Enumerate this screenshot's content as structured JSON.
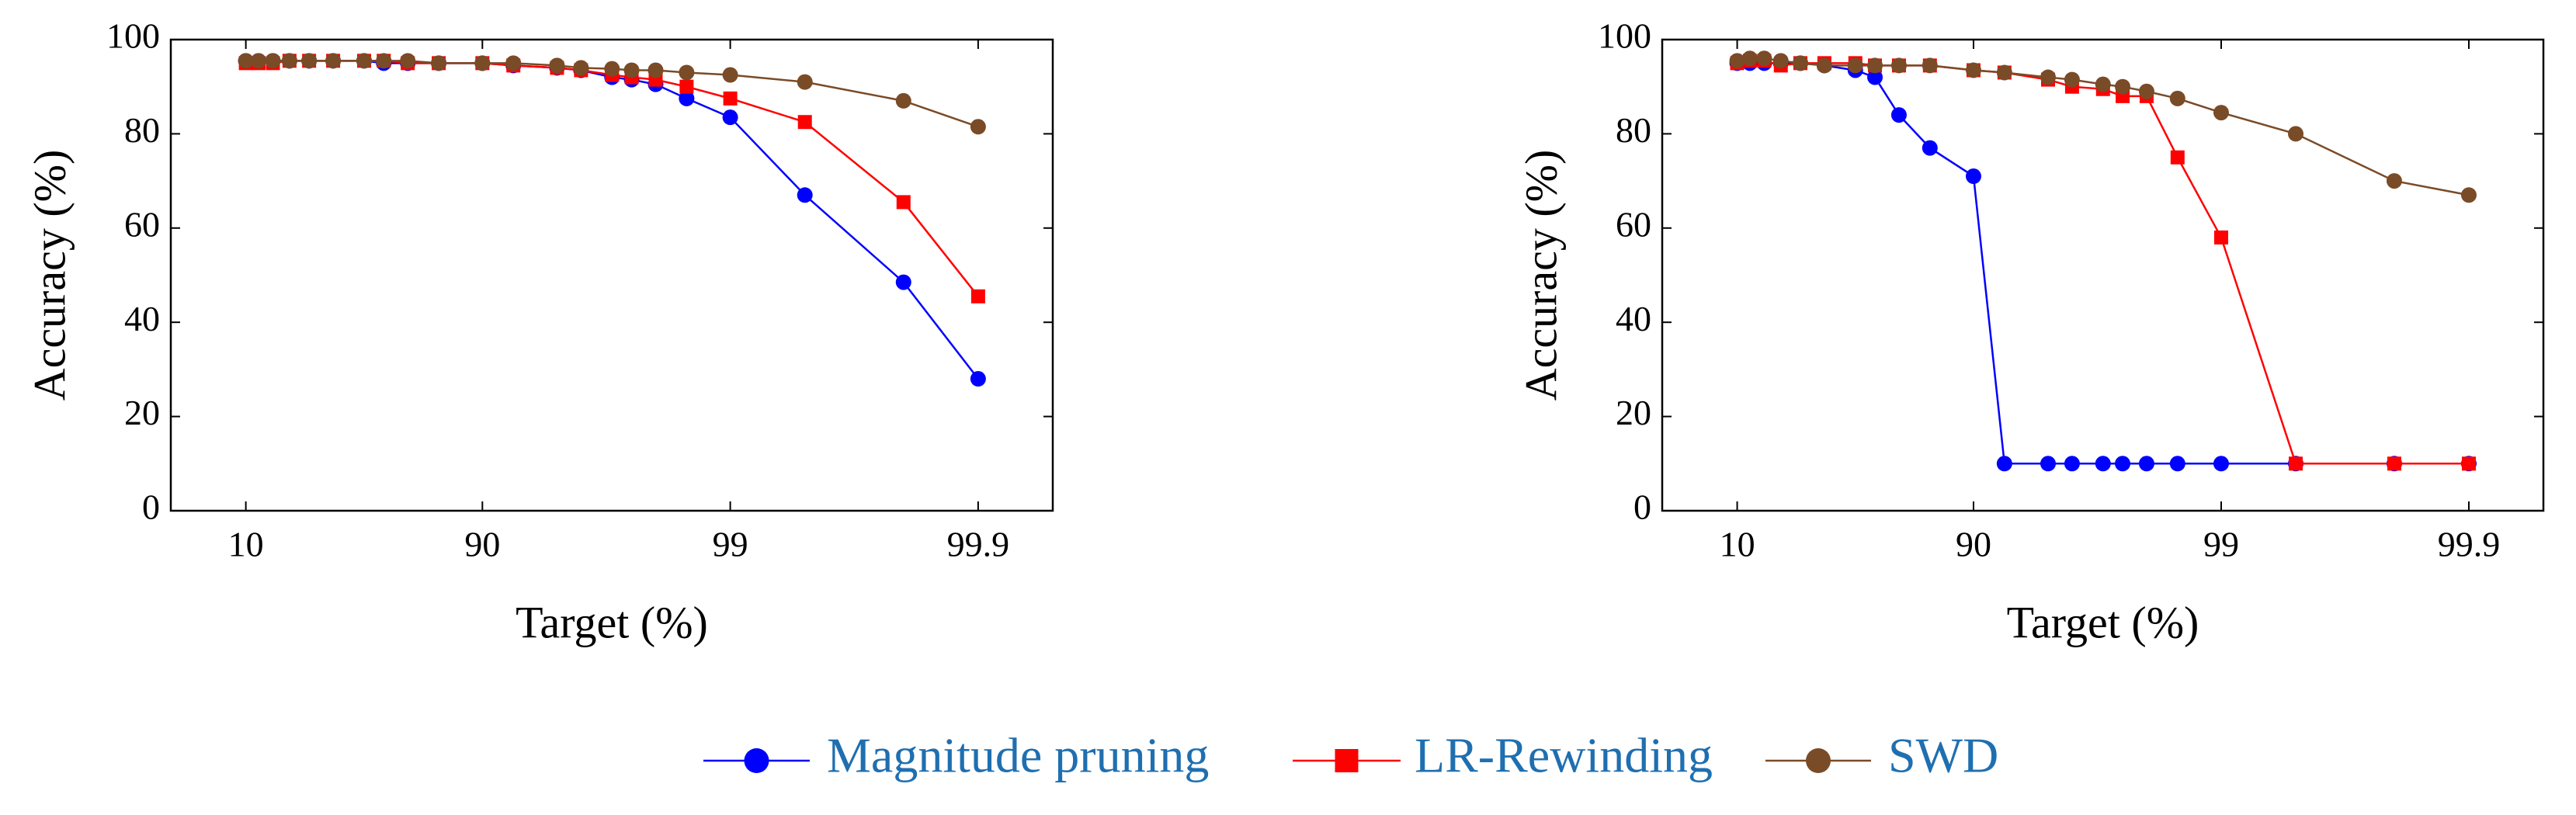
{
  "chart_data": [
    {
      "type": "line",
      "xlabel": "Target (%)",
      "ylabel": "Accuracy (%)",
      "xscale": "log_complement",
      "x": [
        10,
        20,
        30,
        40,
        50,
        60,
        70,
        75,
        80,
        85,
        90,
        92.5,
        95,
        96,
        97,
        97.5,
        98,
        98.5,
        99,
        99.5,
        99.8,
        99.9
      ],
      "xlim": [
        -80.7,
        99.95
      ],
      "xticks": [
        10,
        90,
        99,
        99.9
      ],
      "ylim": [
        0,
        100
      ],
      "yticks": [
        0,
        20,
        40,
        60,
        80,
        100
      ],
      "series": [
        {
          "name": "Magnitude pruning",
          "color": "#0000ff",
          "marker": "circle",
          "values": [
            95.5,
            95.5,
            95.5,
            95.5,
            95.5,
            95.5,
            95.5,
            95,
            95,
            95,
            95,
            94.5,
            94,
            93.5,
            92,
            91.5,
            90.5,
            87.5,
            83.5,
            67,
            48.5,
            28
          ]
        },
        {
          "name": "LR-Rewinding",
          "color": "#ff0000",
          "marker": "square",
          "values": [
            95,
            95,
            95,
            95.5,
            95.5,
            95.5,
            95.5,
            95.5,
            95,
            95,
            95,
            94.5,
            94,
            93.5,
            92.5,
            92,
            91.5,
            90,
            87.5,
            82.5,
            65.5,
            45.5
          ]
        },
        {
          "name": "SWD",
          "color": "#7a4b27",
          "marker": "circle",
          "values": [
            95.5,
            95.5,
            95.5,
            95.5,
            95.5,
            95.5,
            95.5,
            95.5,
            95.5,
            95,
            95,
            95,
            94.5,
            94,
            93.8,
            93.5,
            93.5,
            93,
            92.5,
            91,
            87,
            81.5
          ]
        }
      ]
    },
    {
      "type": "line",
      "xlabel": "Target (%)",
      "ylabel": "Accuracy (%)",
      "xscale": "log_complement",
      "x": [
        10,
        20,
        30,
        40,
        50,
        60,
        70,
        75,
        80,
        85,
        90,
        92.5,
        95,
        96,
        97,
        97.5,
        98,
        98.5,
        99,
        99.5,
        99.8,
        99.9
      ],
      "xlim": [
        -80.7,
        99.95
      ],
      "xticks": [
        10,
        90,
        99,
        99.9
      ],
      "ylim": [
        0,
        100
      ],
      "yticks": [
        0,
        20,
        40,
        60,
        80,
        100
      ],
      "series": [
        {
          "name": "Magnitude pruning",
          "color": "#0000ff",
          "marker": "circle",
          "values": [
            95,
            95,
            95,
            95,
            95,
            94.5,
            93.5,
            92,
            84,
            77,
            71,
            10,
            10,
            10,
            10,
            10,
            10,
            10,
            10,
            10,
            10,
            10
          ]
        },
        {
          "name": "LR-Rewinding",
          "color": "#ff0000",
          "marker": "square",
          "values": [
            95,
            95.5,
            95.5,
            94.5,
            95,
            95,
            95,
            94.5,
            94.5,
            94.5,
            93.5,
            93,
            91.5,
            90,
            89.5,
            88,
            88,
            75,
            58,
            10,
            10,
            10
          ]
        },
        {
          "name": "SWD",
          "color": "#7a4b27",
          "marker": "circle",
          "values": [
            95.5,
            96,
            96,
            95.5,
            95,
            94.5,
            94.5,
            94.5,
            94.5,
            94.5,
            93.5,
            93,
            92,
            91.5,
            90.5,
            90,
            89,
            87.5,
            84.5,
            80,
            70,
            67
          ]
        }
      ]
    }
  ]
}
